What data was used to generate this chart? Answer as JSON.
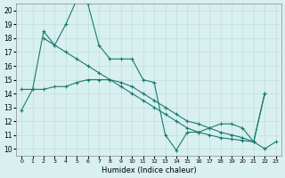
{
  "xlabel": "Humidex (Indice chaleur)",
  "xlim": [
    -0.5,
    23.5
  ],
  "ylim": [
    9.5,
    20.5
  ],
  "xticks": [
    0,
    1,
    2,
    3,
    4,
    5,
    6,
    7,
    8,
    9,
    10,
    11,
    12,
    13,
    14,
    15,
    16,
    17,
    18,
    19,
    20,
    21,
    22,
    23
  ],
  "yticks": [
    10,
    11,
    12,
    13,
    14,
    15,
    16,
    17,
    18,
    19,
    20
  ],
  "bg_color": "#d8f0ef",
  "line_color": "#1a7a6e",
  "grid_color": "#c0dedd",
  "series1_x": [
    0,
    1,
    2,
    3,
    4,
    5,
    6,
    7,
    8,
    9,
    10,
    11,
    12,
    13,
    14,
    15,
    16,
    17,
    18,
    19,
    20,
    21,
    22,
    23
  ],
  "series1_y": [
    12.8,
    14.3,
    18.5,
    17.5,
    19.0,
    20.8,
    20.5,
    17.5,
    16.5,
    16.5,
    16.5,
    15.0,
    14.8,
    11.0,
    9.9,
    11.2,
    11.2,
    11.5,
    11.8,
    11.8,
    11.5,
    10.5,
    10.0,
    10.5
  ],
  "series2_x": [
    2,
    3,
    4,
    5,
    6,
    7,
    8,
    9,
    10,
    11,
    12,
    13,
    14,
    15,
    16,
    17,
    18,
    19,
    20,
    21,
    22
  ],
  "series2_y": [
    18.0,
    17.5,
    17.0,
    16.5,
    16.0,
    15.5,
    15.0,
    14.5,
    14.0,
    13.5,
    13.0,
    12.5,
    12.0,
    11.5,
    11.2,
    11.0,
    10.8,
    10.7,
    10.6,
    10.5,
    14.0
  ],
  "series3_x": [
    0,
    1,
    2,
    3,
    4,
    5,
    6,
    7,
    8,
    9,
    10,
    11,
    12,
    13,
    14,
    15,
    16,
    17,
    18,
    19,
    20,
    21,
    22
  ],
  "series3_y": [
    14.3,
    14.3,
    14.3,
    14.5,
    14.5,
    14.8,
    15.0,
    15.0,
    15.0,
    14.8,
    14.5,
    14.0,
    13.5,
    13.0,
    12.5,
    12.0,
    11.8,
    11.5,
    11.2,
    11.0,
    10.8,
    10.5,
    14.0
  ]
}
